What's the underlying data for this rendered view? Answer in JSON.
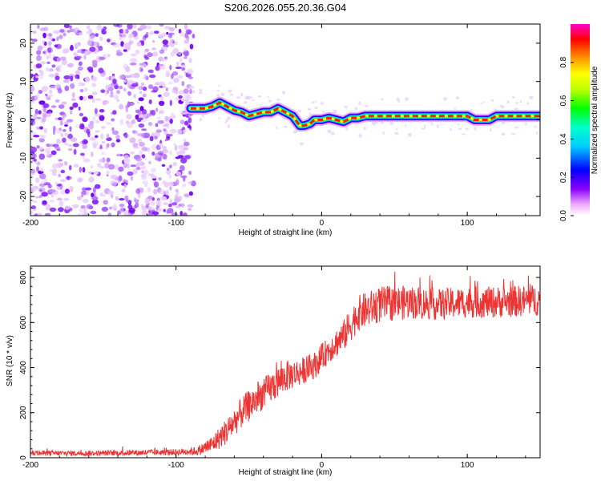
{
  "title": "S206.2026.055.20.36.G04",
  "chart_data": [
    {
      "type": "heatmap",
      "name": "spectrogram",
      "xlabel": "Height of straight line (km)",
      "ylabel": "Frequency (Hz)",
      "xlim": [
        -200,
        150
      ],
      "ylim": [
        -25,
        25
      ],
      "x_ticks": [
        -200,
        -100,
        0,
        100
      ],
      "y_ticks": [
        -20,
        -10,
        0,
        10,
        20
      ],
      "noise_region_end_km": -90,
      "signal_track": {
        "x": [
          -90,
          -80,
          -75,
          -70,
          -65,
          -60,
          -55,
          -50,
          -45,
          -40,
          -35,
          -30,
          -25,
          -20,
          -15,
          -12,
          -8,
          -5,
          0,
          5,
          10,
          15,
          20,
          25,
          30,
          40,
          50,
          60,
          70,
          80,
          90,
          100,
          105,
          110,
          115,
          120,
          130,
          140,
          150
        ],
        "freq_hz": [
          3,
          3,
          3.5,
          4.5,
          3.5,
          2.5,
          2,
          1,
          1.5,
          2,
          2,
          3,
          2,
          1,
          -1.5,
          -1.5,
          -1,
          0,
          0,
          0.5,
          0,
          -0.5,
          0.5,
          0.5,
          1,
          1,
          1,
          1,
          1,
          1,
          1,
          1,
          0,
          0,
          0,
          1,
          1,
          1,
          1
        ]
      },
      "colorbar": {
        "label": "Normalized spectral amplitude",
        "min": 0.0,
        "max": 1.0,
        "ticks": [
          "0.0",
          "0.2",
          "0.4",
          "0.6",
          "0.8"
        ]
      }
    },
    {
      "type": "line",
      "name": "snr",
      "xlabel": "Height of straight line (km)",
      "ylabel": "SNR (10 * v/v)",
      "xlim": [
        -200,
        150
      ],
      "ylim": [
        0,
        850
      ],
      "x_ticks": [
        -200,
        -100,
        0,
        100
      ],
      "y_ticks": [
        0,
        200,
        400,
        600,
        800
      ],
      "line_color": "#ee3333",
      "envelope": {
        "x": [
          -200,
          -150,
          -100,
          -85,
          -75,
          -65,
          -55,
          -45,
          -35,
          -25,
          -15,
          -5,
          5,
          15,
          25,
          40,
          60,
          80,
          100,
          120,
          150
        ],
        "mean": [
          20,
          20,
          25,
          30,
          60,
          120,
          200,
          260,
          310,
          360,
          380,
          410,
          480,
          540,
          640,
          680,
          690,
          680,
          690,
          690,
          700
        ],
        "spread": [
          12,
          12,
          14,
          20,
          40,
          60,
          70,
          70,
          70,
          70,
          60,
          60,
          60,
          70,
          80,
          80,
          75,
          70,
          70,
          70,
          70
        ]
      }
    }
  ]
}
